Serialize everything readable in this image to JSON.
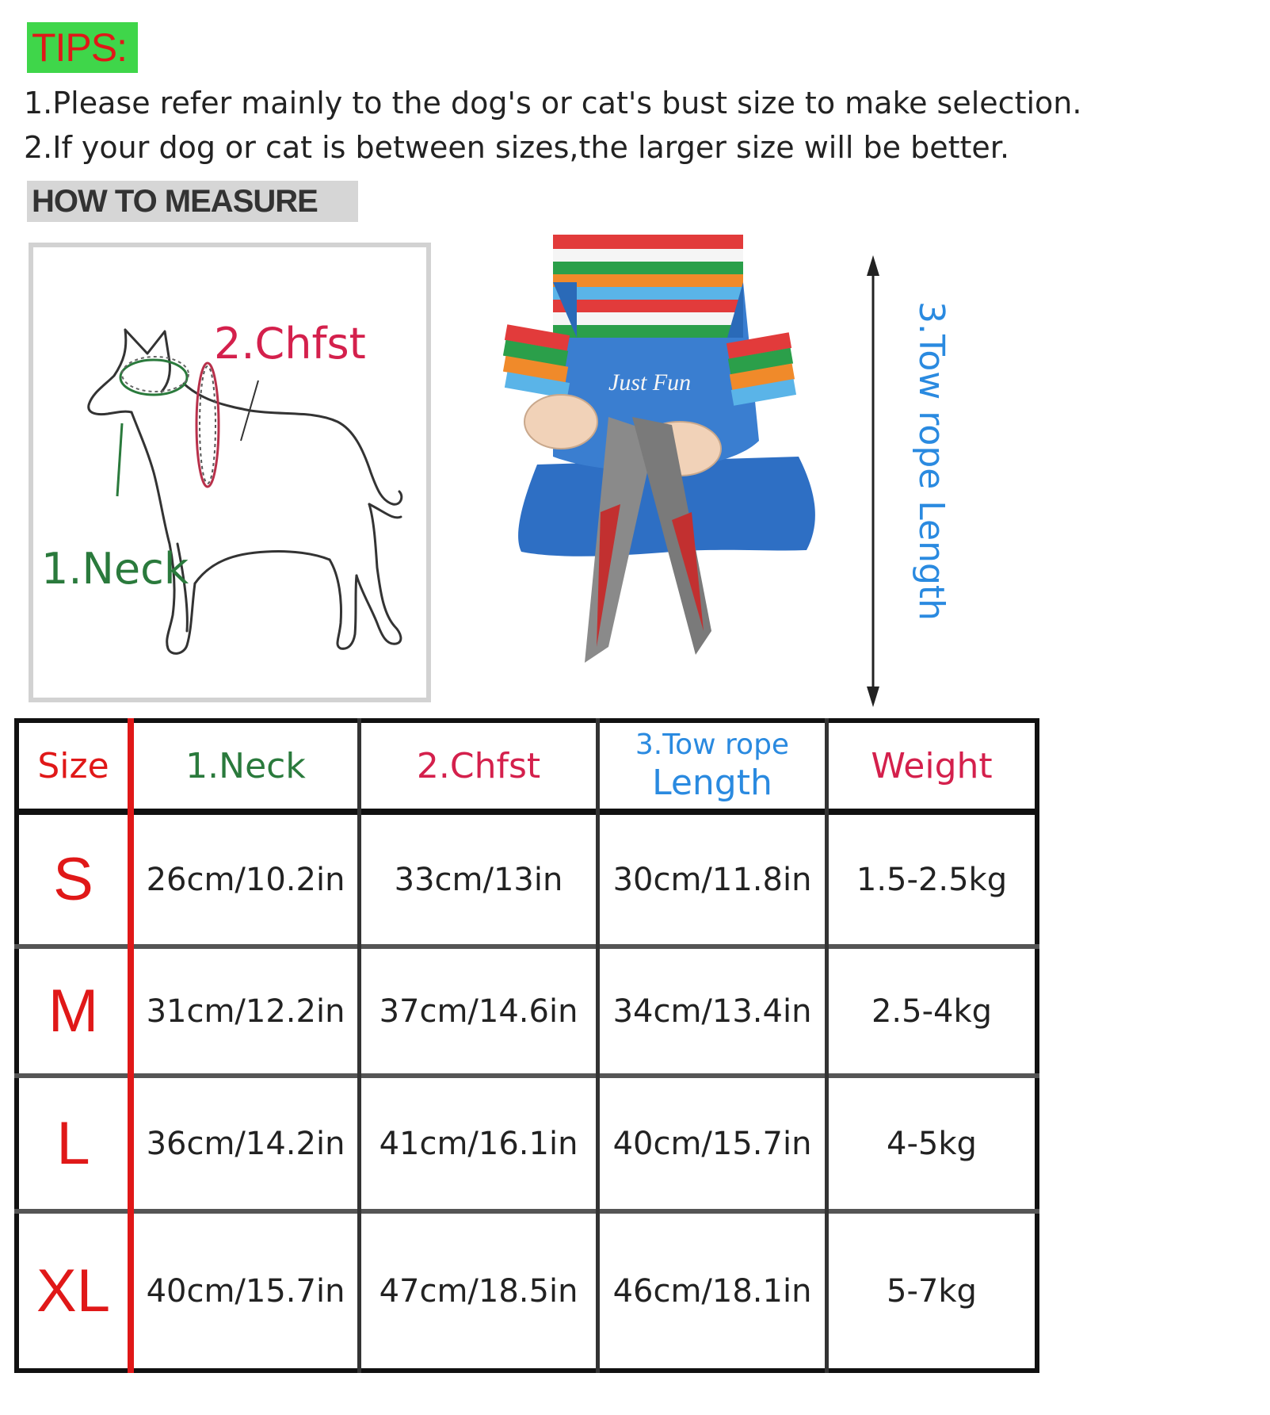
{
  "tips": {
    "badge": "TIPS:",
    "line1": "1.Please refer mainly to the dog's or cat's bust size to make selection.",
    "line2": "2.If your dog or cat is between sizes,the larger size will be better."
  },
  "how_to_measure": "HOW TO MEASURE",
  "diagram": {
    "chest_label": "2.Chfst",
    "neck_label": "1.Neck",
    "tow_label": "3.Tow rope Length",
    "costume_text": "Just Fun"
  },
  "colors": {
    "tips_bg": "#3fd64a",
    "tips_text": "#e01818",
    "neck": "#2a7a3c",
    "chest": "#d4204c",
    "tow": "#2a8ae0",
    "size_letters": "#e01818",
    "divider_red": "#e01818"
  },
  "table": {
    "headers": {
      "size": "Size",
      "neck": "1.Neck",
      "chest": "2.Chfst",
      "tow_line1": "3.Tow rope",
      "tow_line2": "Length",
      "weight": "Weight"
    },
    "rows": [
      {
        "size": "S",
        "neck": "26cm/10.2in",
        "chest": "33cm/13in",
        "tow": "30cm/11.8in",
        "weight": "1.5-2.5kg"
      },
      {
        "size": "M",
        "neck": "31cm/12.2in",
        "chest": "37cm/14.6in",
        "tow": "34cm/13.4in",
        "weight": "2.5-4kg"
      },
      {
        "size": "L",
        "neck": "36cm/14.2in",
        "chest": "41cm/16.1in",
        "tow": "40cm/15.7in",
        "weight": "4-5kg"
      },
      {
        "size": "XL",
        "neck": "40cm/15.7in",
        "chest": "47cm/18.5in",
        "tow": "46cm/18.1in",
        "weight": "5-7kg"
      }
    ]
  }
}
